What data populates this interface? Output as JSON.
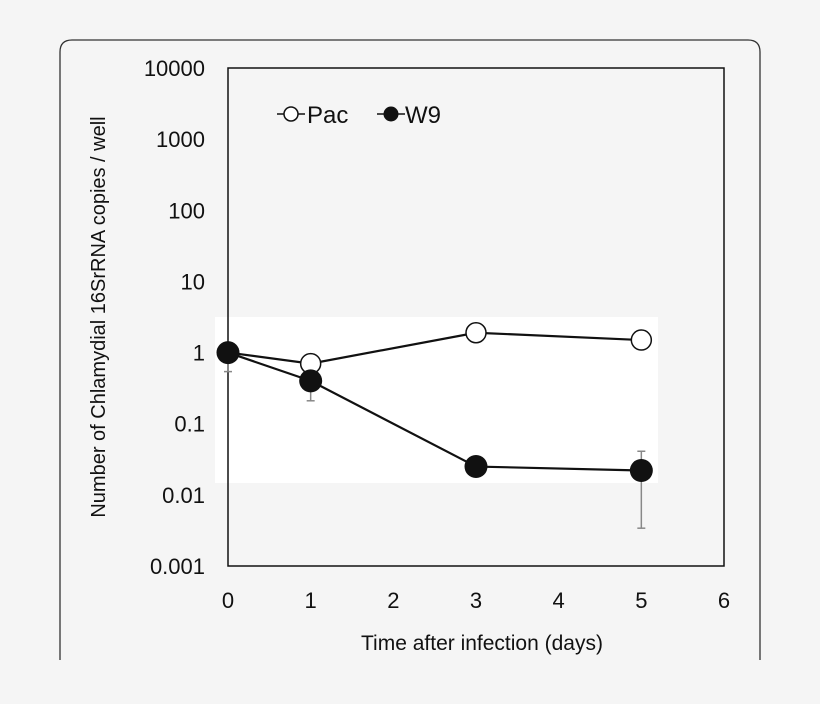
{
  "chart_data": {
    "type": "line",
    "title": "",
    "xlabel": "Time after infection (days)",
    "ylabel": "Number of Chlamydial 16SrRNA copies / well",
    "xlim": [
      0,
      6
    ],
    "ylim": [
      0.001,
      10000
    ],
    "yscale": "log",
    "xticks": [
      "0",
      "1",
      "2",
      "3",
      "4",
      "5",
      "6"
    ],
    "yticks": [
      "0.001",
      "0.01",
      "0.1",
      "1",
      "10",
      "100",
      "1000",
      "10000"
    ],
    "grid": false,
    "legend_position": "top-left",
    "series": [
      {
        "name": "Pac",
        "marker": "open-circle",
        "x": [
          0,
          1,
          3,
          5
        ],
        "y": [
          1.0,
          0.7,
          1.9,
          1.5
        ],
        "err_low": [
          null,
          null,
          null,
          null
        ],
        "err_high": [
          null,
          null,
          null,
          null
        ]
      },
      {
        "name": "W9",
        "marker": "filled-circle",
        "x": [
          0,
          1,
          3,
          5
        ],
        "y": [
          1.0,
          0.4,
          0.025,
          0.022
        ],
        "err_low": [
          0.54,
          0.21,
          null,
          0.0034
        ],
        "err_high": [
          null,
          null,
          null,
          0.041
        ]
      }
    ],
    "colors": {
      "background": "#f5f5f5",
      "line": "#111111",
      "error_bar": "#888888",
      "highlight_patch": "#ffffff"
    }
  }
}
